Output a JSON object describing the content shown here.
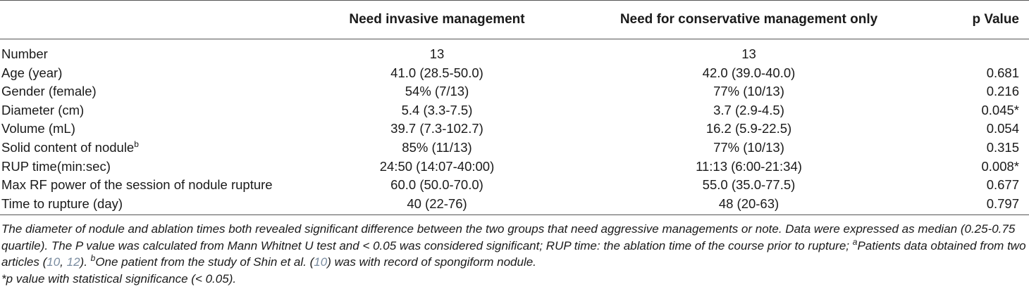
{
  "table": {
    "headers": [
      "",
      "Need invasive management",
      "Need for conservative management only",
      "p Value"
    ],
    "rows": [
      {
        "label": "Number",
        "sup": "",
        "invasive": "13",
        "conservative": "13",
        "p": ""
      },
      {
        "label": "Age (year)",
        "sup": "",
        "invasive": "41.0 (28.5-50.0)",
        "conservative": "42.0 (39.0-40.0)",
        "p": "0.681"
      },
      {
        "label": "Gender (female)",
        "sup": "",
        "invasive": "54% (7/13)",
        "conservative": "77% (10/13)",
        "p": "0.216"
      },
      {
        "label": "Diameter (cm)",
        "sup": "",
        "invasive": "5.4 (3.3-7.5)",
        "conservative": "3.7 (2.9-4.5)",
        "p": "0.045*"
      },
      {
        "label": "Volume (mL)",
        "sup": "",
        "invasive": "39.7 (7.3-102.7)",
        "conservative": "16.2 (5.9-22.5)",
        "p": "0.054"
      },
      {
        "label": "Solid content of nodule",
        "sup": "b",
        "invasive": "85% (11/13)",
        "conservative": "77% (10/13)",
        "p": "0.315"
      },
      {
        "label": "RUP time(min:sec)",
        "sup": "",
        "invasive": "24:50 (14:07-40:00)",
        "conservative": "11:13 (6:00-21:34)",
        "p": "0.008*"
      },
      {
        "label": "Max RF power of the session of nodule rupture",
        "sup": "",
        "invasive": "60.0 (50.0-70.0)",
        "conservative": "55.0 (35.0-77.5)",
        "p": "0.677"
      },
      {
        "label": "Time to rupture (day)",
        "sup": "",
        "invasive": "40 (22-76)",
        "conservative": "48 (20-63)",
        "p": "0.797"
      }
    ]
  },
  "notes": {
    "line1_a": "The diameter of nodule and ablation times both revealed significant difference between the two groups that need aggressive managements or note. Data were expressed as median (0.25-0.75 quartile). The P value was calculated from Mann Whitnet U test and < 0.05 was considered significant; RUP time: the ablation time of the course prior to rupture; ",
    "sup_a": "a",
    "line1_b": "Patients data obtained from two articles (",
    "ref10a": "10",
    "sep": ", ",
    "ref12": "12",
    "line1_c": "). ",
    "sup_b": "b",
    "line1_d": "One patient from the study of Shin et al. (",
    "ref10b": "10",
    "line1_e": ") was with record of spongiform nodule.",
    "line2": "*p value with statistical significance (< 0.05)."
  }
}
